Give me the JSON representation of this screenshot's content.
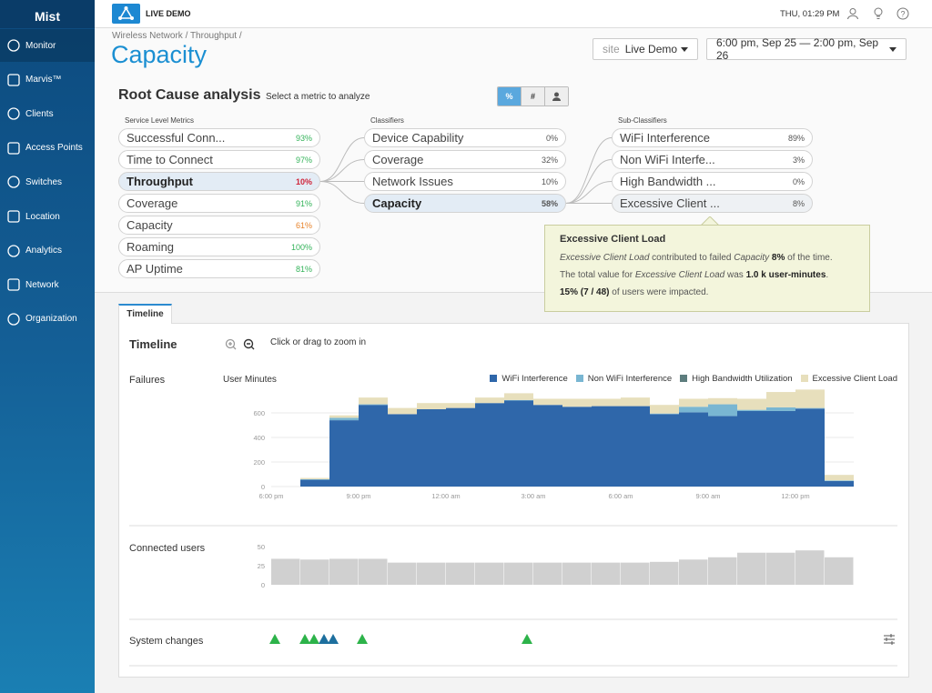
{
  "sidebar": {
    "logo": "Mist",
    "items": [
      "Monitor",
      "Marvis™",
      "Clients",
      "Access Points",
      "Switches",
      "Location",
      "Analytics",
      "Network",
      "Organization"
    ]
  },
  "topbar": {
    "badge": "LIVE DEMO",
    "clock": "THU, 01:29 PM"
  },
  "header": {
    "breadcrumb": "Wireless Network / Throughput /",
    "title": "Capacity",
    "site_label": "site",
    "site": "Live Demo",
    "date_range": "6:00 pm, Sep 25 — 2:00 pm, Sep 26"
  },
  "rca": {
    "title": "Root Cause analysis",
    "subtitle": "Select a metric to analyze",
    "toggles": [
      "%",
      "#"
    ],
    "columns": [
      {
        "heading": "Service Level Metrics",
        "rows": [
          {
            "name": "Successful Conn...",
            "value": "93%",
            "color": "#34b35a"
          },
          {
            "name": "Time to Connect",
            "value": "97%",
            "color": "#34b35a"
          },
          {
            "name": "Throughput",
            "value": "10%",
            "color": "#d0253a",
            "selected": true
          },
          {
            "name": "Coverage",
            "value": "91%",
            "color": "#34b35a"
          },
          {
            "name": "Capacity",
            "value": "61%",
            "color": "#e8842c"
          },
          {
            "name": "Roaming",
            "value": "100%",
            "color": "#34b35a"
          },
          {
            "name": "AP Uptime",
            "value": "81%",
            "color": "#34b35a"
          }
        ]
      },
      {
        "heading": "Classifiers",
        "rows": [
          {
            "name": "Device Capability",
            "value": "0%"
          },
          {
            "name": "Coverage",
            "value": "32%"
          },
          {
            "name": "Network Issues",
            "value": "10%"
          },
          {
            "name": "Capacity",
            "value": "58%",
            "selected": true
          }
        ]
      },
      {
        "heading": "Sub-Classifiers",
        "rows": [
          {
            "name": "WiFi Interference",
            "value": "89%"
          },
          {
            "name": "Non WiFi Interfe...",
            "value": "3%"
          },
          {
            "name": "High Bandwidth ...",
            "value": "0%"
          },
          {
            "name": "Excessive Client ...",
            "value": "8%",
            "hovered": true
          }
        ]
      }
    ]
  },
  "tooltip": {
    "title": "Excessive Client Load",
    "lines": [
      [
        {
          "text": "Excessive Client Load",
          "style": "italic"
        },
        " contributed to failed ",
        {
          "text": "Capacity",
          "style": "italic"
        },
        " ",
        {
          "text": "8%",
          "style": "bold"
        },
        " of the time."
      ],
      [
        "The total value for ",
        {
          "text": "Excessive Client Load",
          "style": "italic"
        },
        " was ",
        {
          "text": "1.0 k user-minutes",
          "style": "bold"
        },
        "."
      ],
      [
        {
          "text": "15% (7 / 48)",
          "style": "bold"
        },
        " of users were impacted."
      ]
    ]
  },
  "timeline": {
    "tab": "Timeline",
    "heading": "Timeline",
    "hint": "Click or drag to zoom in",
    "failures_label": "Failures",
    "users_label": "Connected users",
    "changes_label": "System changes"
  },
  "chart_data": [
    {
      "type": "bar",
      "stacked": true,
      "y_label": "User Minutes",
      "categories": [
        "6:00 pm",
        null,
        null,
        "9:00 pm",
        null,
        null,
        "12:00 am",
        null,
        null,
        "3:00 am",
        null,
        null,
        "6:00 am",
        null,
        null,
        "9:00 am",
        null,
        null,
        "12:00 pm",
        null
      ],
      "series": [
        {
          "name": "WiFi Interference",
          "color": "#2f67aa",
          "values": [
            null,
            55,
            540,
            665,
            590,
            630,
            640,
            680,
            700,
            665,
            650,
            655,
            655,
            590,
            605,
            575,
            615,
            615,
            635,
            45
          ]
        },
        {
          "name": "Non WiFi Interference",
          "color": "#79b6d2",
          "values": [
            null,
            5,
            20,
            5,
            0,
            0,
            0,
            0,
            5,
            0,
            0,
            0,
            0,
            5,
            45,
            95,
            10,
            30,
            5,
            5
          ]
        },
        {
          "name": "High Bandwidth Utilization",
          "color": "#5d7d7e",
          "values": [
            null,
            0,
            0,
            0,
            0,
            0,
            0,
            0,
            0,
            0,
            0,
            0,
            0,
            0,
            0,
            0,
            0,
            0,
            0,
            0
          ]
        },
        {
          "name": "Excessive Client Load",
          "color": "#e7dfbc",
          "values": [
            null,
            10,
            20,
            55,
            50,
            50,
            40,
            45,
            55,
            50,
            65,
            60,
            70,
            70,
            65,
            50,
            90,
            125,
            150,
            45
          ]
        }
      ],
      "ylim": [
        0,
        800
      ],
      "yticks": [
        0,
        200,
        400,
        600
      ],
      "grid": true,
      "legend": "top-right"
    },
    {
      "type": "bar",
      "values": [
        34,
        33,
        34,
        34,
        29,
        29,
        29,
        29,
        29,
        29,
        29,
        29,
        29,
        30,
        33,
        36,
        42,
        42,
        45,
        36
      ],
      "color": "#d0d0d0",
      "ylim": [
        0,
        50
      ],
      "yticks": [
        0,
        25,
        50
      ],
      "grid": false
    }
  ]
}
